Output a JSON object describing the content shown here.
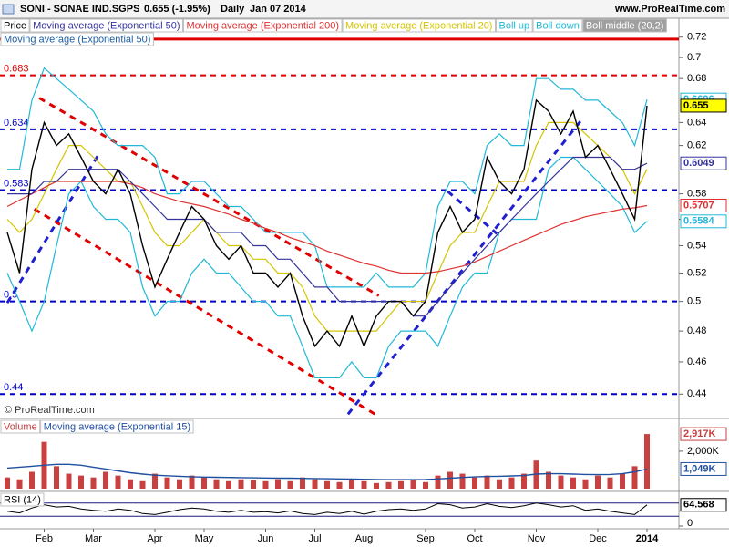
{
  "header": {
    "symbol": "SONI - SONAE IND.SGPS",
    "quote": "0.655 (-1.95%)",
    "period": "Daily",
    "date": "Jan 07 2014",
    "site": "www.ProRealTime.com",
    "watermark": "© ProRealTime.com"
  },
  "chart_data": [
    {
      "type": "line",
      "log_scale": true,
      "categories": [
        null,
        null,
        null,
        "Feb",
        null,
        null,
        null,
        "Mar",
        null,
        null,
        null,
        null,
        "Apr",
        null,
        null,
        null,
        "May",
        null,
        null,
        null,
        null,
        "Jun",
        null,
        null,
        null,
        "Jul",
        null,
        null,
        null,
        "Aug",
        null,
        null,
        null,
        null,
        "Sep",
        null,
        null,
        null,
        "Oct",
        null,
        null,
        null,
        null,
        "Nov",
        null,
        null,
        null,
        null,
        "Dec",
        null,
        null,
        null,
        "2014"
      ],
      "ylim": [
        0.426,
        0.739
      ],
      "yticks": [
        0.72,
        0.7,
        0.68,
        0.64,
        0.62,
        0.58,
        0.56,
        0.54,
        0.52,
        0.5,
        0.48,
        0.46,
        0.44
      ],
      "series": [
        {
          "name": "Price",
          "color": "#000000",
          "badge": true,
          "badge_fill": "#ffff00",
          "values": [
            0.55,
            0.52,
            0.6,
            0.64,
            0.62,
            0.63,
            0.61,
            0.59,
            0.58,
            0.6,
            0.58,
            0.54,
            0.51,
            0.53,
            0.55,
            0.57,
            0.56,
            0.54,
            0.53,
            0.54,
            0.52,
            0.52,
            0.51,
            0.52,
            0.49,
            0.47,
            0.48,
            0.47,
            0.49,
            0.47,
            0.49,
            0.5,
            0.5,
            0.49,
            0.5,
            0.55,
            0.57,
            0.55,
            0.56,
            0.61,
            0.59,
            0.58,
            0.6,
            0.66,
            0.65,
            0.63,
            0.65,
            0.61,
            0.62,
            0.6,
            0.58,
            0.56,
            0.655
          ]
        },
        {
          "name": "Moving average (Exponential 50)",
          "color": "#34349c",
          "badge": true,
          "badge_fill": "#ffffff",
          "values": [
            0.58,
            0.58,
            0.58,
            0.59,
            0.59,
            0.6,
            0.6,
            0.6,
            0.6,
            0.6,
            0.59,
            0.58,
            0.57,
            0.56,
            0.56,
            0.56,
            0.56,
            0.55,
            0.55,
            0.55,
            0.54,
            0.54,
            0.53,
            0.53,
            0.52,
            0.51,
            0.51,
            0.5,
            0.5,
            0.5,
            0.5,
            0.5,
            0.5,
            0.49,
            0.49,
            0.5,
            0.51,
            0.52,
            0.53,
            0.54,
            0.55,
            0.56,
            0.57,
            0.58,
            0.59,
            0.6,
            0.61,
            0.61,
            0.61,
            0.61,
            0.6,
            0.6,
            0.6049
          ]
        },
        {
          "name": "Moving average (Exponential 200)",
          "color": "#e03030",
          "badge": true,
          "badge_fill": "#ffffff",
          "values": [
            0.57,
            0.575,
            0.58,
            0.585,
            0.59,
            0.59,
            0.59,
            0.59,
            0.59,
            0.59,
            0.588,
            0.585,
            0.58,
            0.577,
            0.574,
            0.572,
            0.57,
            0.567,
            0.564,
            0.56,
            0.557,
            0.553,
            0.55,
            0.546,
            0.543,
            0.54,
            0.536,
            0.533,
            0.53,
            0.527,
            0.525,
            0.522,
            0.52,
            0.52,
            0.52,
            0.521,
            0.523,
            0.525,
            0.528,
            0.532,
            0.536,
            0.54,
            0.544,
            0.548,
            0.552,
            0.556,
            0.559,
            0.562,
            0.564,
            0.566,
            0.568,
            0.569,
            0.5707
          ]
        },
        {
          "name": "Moving average (Exponential 20)",
          "color": "#d4c400",
          "badge": false,
          "badge_fill": "#ffffff",
          "values": [
            0.56,
            0.55,
            0.56,
            0.58,
            0.6,
            0.62,
            0.62,
            0.61,
            0.6,
            0.59,
            0.59,
            0.57,
            0.55,
            0.54,
            0.54,
            0.55,
            0.56,
            0.55,
            0.54,
            0.54,
            0.53,
            0.53,
            0.52,
            0.52,
            0.51,
            0.49,
            0.48,
            0.48,
            0.48,
            0.48,
            0.48,
            0.49,
            0.5,
            0.5,
            0.5,
            0.52,
            0.54,
            0.55,
            0.55,
            0.57,
            0.59,
            0.59,
            0.59,
            0.62,
            0.64,
            0.64,
            0.64,
            0.63,
            0.62,
            0.61,
            0.6,
            0.58,
            0.6
          ]
        },
        {
          "name": "Boll up",
          "color": "#20b8d8",
          "badge": true,
          "badge_fill": "#ffffff",
          "values": [
            0.6,
            0.6,
            0.66,
            0.69,
            0.68,
            0.67,
            0.66,
            0.65,
            0.63,
            0.62,
            0.62,
            0.62,
            0.61,
            0.58,
            0.58,
            0.59,
            0.59,
            0.58,
            0.57,
            0.57,
            0.56,
            0.55,
            0.55,
            0.55,
            0.55,
            0.54,
            0.51,
            0.51,
            0.51,
            0.51,
            0.52,
            0.51,
            0.51,
            0.51,
            0.52,
            0.57,
            0.59,
            0.59,
            0.58,
            0.62,
            0.63,
            0.62,
            0.62,
            0.68,
            0.68,
            0.67,
            0.67,
            0.66,
            0.66,
            0.65,
            0.64,
            0.62,
            0.6606
          ]
        },
        {
          "name": "Boll down",
          "color": "#20b8d8",
          "badge": true,
          "badge_fill": "#ffffff",
          "values": [
            0.52,
            0.5,
            0.48,
            0.5,
            0.54,
            0.58,
            0.59,
            0.57,
            0.56,
            0.56,
            0.55,
            0.51,
            0.49,
            0.5,
            0.5,
            0.52,
            0.53,
            0.52,
            0.52,
            0.51,
            0.5,
            0.5,
            0.49,
            0.49,
            0.47,
            0.45,
            0.45,
            0.45,
            0.46,
            0.45,
            0.45,
            0.47,
            0.48,
            0.48,
            0.48,
            0.47,
            0.49,
            0.51,
            0.52,
            0.52,
            0.55,
            0.56,
            0.56,
            0.56,
            0.6,
            0.61,
            0.61,
            0.6,
            0.59,
            0.58,
            0.57,
            0.55,
            0.5584
          ]
        }
      ],
      "extra_tabs": [
        {
          "label": "Boll middle (20,2)",
          "color": "#ffffff",
          "fill": "#a0a0a0"
        }
      ],
      "overlay_label": {
        "label": "Moving average (Exponential 50)",
        "color": "#2060a0"
      },
      "levels": [
        {
          "value": 0.683,
          "color": "#e00000"
        },
        {
          "value": 0.634,
          "color": "#0000c8"
        },
        {
          "value": 0.583,
          "color": "#0000c8"
        },
        {
          "value": 0.5,
          "color": "#0000c8"
        },
        {
          "value": 0.44,
          "color": "#0000c8"
        }
      ],
      "resistance": {
        "value": 0.718,
        "color": "#e00000"
      },
      "trendlines": [
        {
          "color": "#e00000",
          "x": [
            2.6,
            30.2
          ],
          "values": [
            0.662,
            0.504
          ]
        },
        {
          "color": "#e00000",
          "x": [
            2.2,
            29.9
          ],
          "values": [
            0.568,
            0.428
          ]
        },
        {
          "color": "#2020d0",
          "x": [
            0,
            7.4
          ],
          "values": [
            0.499,
            0.612
          ]
        },
        {
          "color": "#2020d0",
          "x": [
            27.7,
            46.8
          ],
          "values": [
            0.428,
            0.644
          ]
        },
        {
          "color": "#2020d0",
          "x": [
            35.8,
            39.8
          ],
          "values": [
            0.582,
            0.549
          ]
        }
      ]
    },
    {
      "type": "bar",
      "ylim": [
        0,
        3700000
      ],
      "yticks": [
        {
          "value": 2000000,
          "label": "2,000K"
        }
      ],
      "series": [
        {
          "name": "Volume",
          "color": "#c84040",
          "values": [
            600000,
            500000,
            900000,
            2500000,
            1200000,
            800000,
            700000,
            600000,
            900000,
            700000,
            500000,
            400000,
            800000,
            600000,
            500000,
            700000,
            600000,
            500000,
            400000,
            500000,
            450000,
            400000,
            500000,
            400000,
            600000,
            500000,
            400000,
            350000,
            450000,
            400000,
            300000,
            350000,
            400000,
            450000,
            350000,
            700000,
            900000,
            800000,
            600000,
            700000,
            500000,
            600000,
            800000,
            1500000,
            900000,
            700000,
            600000,
            500000,
            700000,
            600000,
            800000,
            1200000,
            2917000
          ],
          "value_labels": [
            null,
            null,
            null,
            null,
            null,
            null,
            null,
            null,
            null,
            null,
            null,
            null,
            null,
            null,
            null,
            null,
            null,
            null,
            null,
            null,
            null,
            null,
            null,
            null,
            null,
            null,
            null,
            null,
            null,
            null,
            null,
            null,
            null,
            null,
            null,
            null,
            null,
            null,
            null,
            null,
            null,
            null,
            null,
            null,
            null,
            null,
            null,
            null,
            null,
            null,
            null,
            null,
            "2,917K"
          ]
        },
        {
          "name": "Moving average (Exponential 15)",
          "color": "#2050a0",
          "values": [
            1100000,
            1150000,
            1200000,
            1250000,
            1300000,
            1300000,
            1250000,
            1150000,
            1050000,
            950000,
            850000,
            780000,
            720000,
            690000,
            660000,
            640000,
            620000,
            610000,
            600000,
            590000,
            580000,
            570000,
            560000,
            560000,
            550000,
            540000,
            530000,
            520000,
            510000,
            500000,
            490000,
            480000,
            480000,
            480000,
            490000,
            520000,
            560000,
            600000,
            630000,
            650000,
            660000,
            680000,
            700000,
            780000,
            800000,
            800000,
            780000,
            760000,
            750000,
            760000,
            800000,
            900000,
            1049000
          ],
          "value_labels": [
            null,
            null,
            null,
            null,
            null,
            null,
            null,
            null,
            null,
            null,
            null,
            null,
            null,
            null,
            null,
            null,
            null,
            null,
            null,
            null,
            null,
            null,
            null,
            null,
            null,
            null,
            null,
            null,
            null,
            null,
            null,
            null,
            null,
            null,
            null,
            null,
            null,
            null,
            null,
            null,
            null,
            null,
            null,
            null,
            null,
            null,
            null,
            null,
            null,
            null,
            null,
            null,
            "1,049K"
          ]
        }
      ]
    },
    {
      "type": "line",
      "ylim": [
        0,
        100
      ],
      "yticks": [
        0
      ],
      "levels": [
        30,
        70
      ],
      "series": [
        {
          "name": "RSI (14)",
          "color": "#000000",
          "values": [
            45,
            40,
            55,
            65,
            58,
            60,
            52,
            48,
            45,
            52,
            48,
            38,
            35,
            42,
            50,
            55,
            52,
            45,
            42,
            48,
            42,
            44,
            40,
            46,
            38,
            35,
            42,
            38,
            45,
            36,
            45,
            50,
            52,
            48,
            52,
            68,
            65,
            55,
            58,
            68,
            60,
            56,
            62,
            70,
            65,
            58,
            62,
            48,
            52,
            45,
            40,
            35,
            64.568
          ]
        }
      ]
    }
  ]
}
